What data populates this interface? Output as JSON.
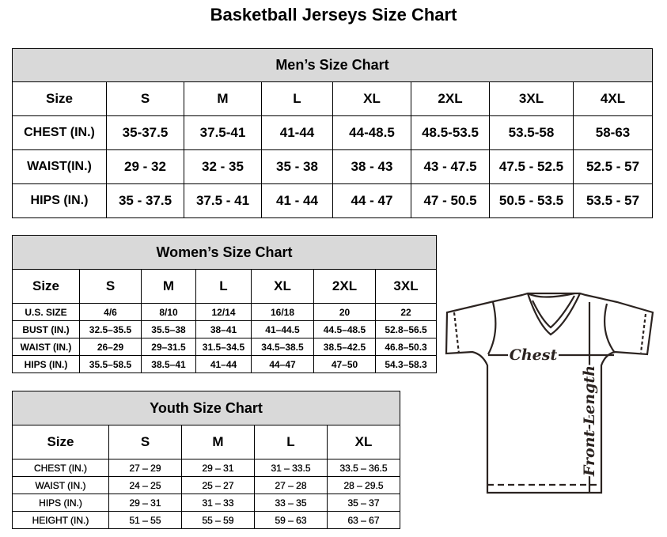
{
  "title": "Basketball Jerseys Size Chart",
  "men": {
    "caption": "Men’s Size Chart",
    "header": [
      "Size",
      "S",
      "M",
      "L",
      "XL",
      "2XL",
      "3XL",
      "4XL"
    ],
    "rows": [
      [
        "CHEST (IN.)",
        "35-37.5",
        "37.5-41",
        "41-44",
        "44-48.5",
        "48.5-53.5",
        "53.5-58",
        "58-63"
      ],
      [
        "WAIST(IN.)",
        "29 - 32",
        "32 - 35",
        "35 - 38",
        "38 - 43",
        "43 - 47.5",
        "47.5 - 52.5",
        "52.5 - 57"
      ],
      [
        "HIPS (IN.)",
        "35 - 37.5",
        "37.5 - 41",
        "41 - 44",
        "44 - 47",
        "47 - 50.5",
        "50.5 - 53.5",
        "53.5 - 57"
      ]
    ]
  },
  "women": {
    "caption": "Women’s Size Chart",
    "header": [
      "Size",
      "S",
      "M",
      "L",
      "XL",
      "2XL",
      "3XL"
    ],
    "rows": [
      [
        "U.S. SIZE",
        "4/6",
        "8/10",
        "12/14",
        "16/18",
        "20",
        "22"
      ],
      [
        "BUST (IN.)",
        "32.5–35.5",
        "35.5–38",
        "38–41",
        "41–44.5",
        "44.5–48.5",
        "52.8–56.5"
      ],
      [
        "WAIST (IN.)",
        "26–29",
        "29–31.5",
        "31.5–34.5",
        "34.5–38.5",
        "38.5–42.5",
        "46.8–50.3"
      ],
      [
        "HIPS (IN.)",
        "35.5–58.5",
        "38.5–41",
        "41–44",
        "44–47",
        "47–50",
        "54.3–58.3"
      ]
    ]
  },
  "youth": {
    "caption": "Youth Size Chart",
    "header": [
      "Size",
      "S",
      "M",
      "L",
      "XL"
    ],
    "rows": [
      [
        "CHEST (IN.)",
        "27 – 29",
        "29 – 31",
        "31 – 33.5",
        "33.5 – 36.5"
      ],
      [
        "WAIST (IN.)",
        "24 – 25",
        "25 – 27",
        "27 – 28",
        "28 – 29.5"
      ],
      [
        "HIPS (IN.)",
        "29 – 31",
        "31 – 33",
        "33 – 35",
        "35 – 37"
      ],
      [
        "HEIGHT (IN.)",
        "51 – 55",
        "55 – 59",
        "59 – 63",
        "63 – 67"
      ]
    ]
  },
  "diagram": {
    "chest_label": "Chest",
    "length_label": "Front Length",
    "line_color": "#2b2320"
  }
}
